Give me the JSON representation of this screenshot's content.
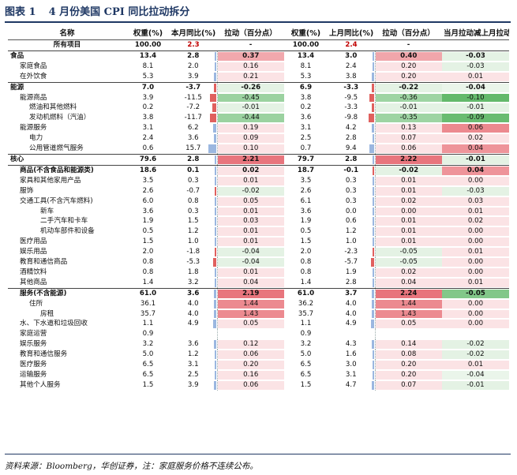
{
  "title": {
    "label": "图表 1",
    "text": "4 月份美国 CPI 同比拉动拆分"
  },
  "headers": {
    "name": "名称",
    "w_cur": "权重(%)",
    "yoy_cur": "本月同比(%)",
    "pull_cur": "拉动（百分点）",
    "w_prev": "权重(%)",
    "yoy_prev": "上月同比(%)",
    "pull_prev": "拉动（百分点）",
    "diff": "当月拉动减上月拉动"
  },
  "total": {
    "name": "所有项目",
    "w_cur": "100.00",
    "yoy_cur": "2.3",
    "pull_cur": "-",
    "w_prev": "100.00",
    "yoy_prev": "2.4",
    "pull_prev": "-",
    "diff": ""
  },
  "rows": [
    {
      "name": "食品",
      "level": 0,
      "bold": true,
      "top": true,
      "w1": "13.4",
      "y1": "2.8",
      "y1n": 2.8,
      "p1": "0.37",
      "p1n": 0.37,
      "w2": "13.4",
      "y2": "3.0",
      "y2n": 3.0,
      "p2": "0.40",
      "p2n": 0.4,
      "d": "-0.03",
      "dn": -0.03
    },
    {
      "name": "家庭食品",
      "level": 1,
      "w1": "8.1",
      "y1": "2.0",
      "y1n": 2.0,
      "p1": "0.16",
      "p1n": 0.16,
      "w2": "8.1",
      "y2": "2.4",
      "y2n": 2.4,
      "p2": "0.20",
      "p2n": 0.2,
      "d": "-0.03",
      "dn": -0.03
    },
    {
      "name": "在外饮食",
      "level": 1,
      "w1": "5.3",
      "y1": "3.9",
      "y1n": 3.9,
      "p1": "0.21",
      "p1n": 0.21,
      "w2": "5.3",
      "y2": "3.8",
      "y2n": 3.8,
      "p2": "0.20",
      "p2n": 0.2,
      "d": "0.01",
      "dn": 0.01
    },
    {
      "name": "能源",
      "level": 0,
      "bold": true,
      "top": true,
      "w1": "7.0",
      "y1": "-3.7",
      "y1n": -3.7,
      "p1": "-0.26",
      "p1n": -0.26,
      "w2": "6.9",
      "y2": "-3.3",
      "y2n": -3.3,
      "p2": "-0.22",
      "p2n": -0.22,
      "d": "-0.04",
      "dn": -0.04
    },
    {
      "name": "能源商品",
      "level": 1,
      "w1": "3.9",
      "y1": "-11.5",
      "y1n": -11.5,
      "p1": "-0.45",
      "p1n": -0.45,
      "w2": "3.8",
      "y2": "-9.5",
      "y2n": -9.5,
      "p2": "-0.36",
      "p2n": -0.36,
      "d": "-0.10",
      "dn": -0.1
    },
    {
      "name": "燃油和其他燃料",
      "level": 2,
      "w1": "0.2",
      "y1": "-7.2",
      "y1n": -7.2,
      "p1": "-0.01",
      "p1n": -0.01,
      "w2": "0.2",
      "y2": "-3.3",
      "y2n": -3.3,
      "p2": "-0.01",
      "p2n": -0.01,
      "d": "-0.01",
      "dn": -0.01
    },
    {
      "name": "发动机燃料（汽油）",
      "level": 2,
      "w1": "3.8",
      "y1": "-11.7",
      "y1n": -11.7,
      "p1": "-0.44",
      "p1n": -0.44,
      "w2": "3.6",
      "y2": "-9.8",
      "y2n": -9.8,
      "p2": "-0.35",
      "p2n": -0.35,
      "d": "-0.09",
      "dn": -0.09
    },
    {
      "name": "能源服务",
      "level": 1,
      "w1": "3.1",
      "y1": "6.2",
      "y1n": 6.2,
      "p1": "0.19",
      "p1n": 0.19,
      "w2": "3.1",
      "y2": "4.2",
      "y2n": 4.2,
      "p2": "0.13",
      "p2n": 0.13,
      "d": "0.06",
      "dn": 0.06
    },
    {
      "name": "电力",
      "level": 2,
      "w1": "2.4",
      "y1": "3.6",
      "y1n": 3.6,
      "p1": "0.09",
      "p1n": 0.09,
      "w2": "2.5",
      "y2": "2.8",
      "y2n": 2.8,
      "p2": "0.07",
      "p2n": 0.07,
      "d": "0.02",
      "dn": 0.02
    },
    {
      "name": "公用管道燃气服务",
      "level": 2,
      "w1": "0.6",
      "y1": "15.7",
      "y1n": 15.7,
      "p1": "0.10",
      "p1n": 0.1,
      "w2": "0.7",
      "y2": "9.4",
      "y2n": 9.4,
      "p2": "0.06",
      "p2n": 0.06,
      "d": "0.04",
      "dn": 0.04
    },
    {
      "name": "核心",
      "level": 0,
      "bold": true,
      "top": true,
      "w1": "79.6",
      "y1": "2.8",
      "y1n": 2.8,
      "p1": "2.21",
      "p1n": 2.21,
      "w2": "79.7",
      "y2": "2.8",
      "y2n": 2.8,
      "p2": "2.22",
      "p2n": 2.22,
      "d": "-0.01",
      "dn": -0.01
    },
    {
      "name": "商品(不含食品和能源类)",
      "level": 1,
      "bold": true,
      "top": true,
      "w1": "18.6",
      "y1": "0.1",
      "y1n": 0.1,
      "p1": "0.02",
      "p1n": 0.02,
      "w2": "18.7",
      "y2": "-0.1",
      "y2n": -0.1,
      "p2": "-0.02",
      "p2n": -0.02,
      "d": "0.04",
      "dn": 0.04
    },
    {
      "name": "家具和其他家用产品",
      "level": 1,
      "w1": "3.5",
      "y1": "0.3",
      "y1n": 0.3,
      "p1": "0.01",
      "p1n": 0.01,
      "w2": "3.5",
      "y2": "0.3",
      "y2n": 0.3,
      "p2": "0.01",
      "p2n": 0.01,
      "d": "0.00",
      "dn": 0.0
    },
    {
      "name": "服饰",
      "level": 1,
      "w1": "2.6",
      "y1": "-0.7",
      "y1n": -0.7,
      "p1": "-0.02",
      "p1n": -0.02,
      "w2": "2.6",
      "y2": "0.3",
      "y2n": 0.3,
      "p2": "0.01",
      "p2n": 0.01,
      "d": "-0.03",
      "dn": -0.03
    },
    {
      "name": "交通工具(不含汽车燃料)",
      "level": 1,
      "w1": "6.0",
      "y1": "0.8",
      "y1n": 0.8,
      "p1": "0.05",
      "p1n": 0.05,
      "w2": "6.1",
      "y2": "0.3",
      "y2n": 0.3,
      "p2": "0.02",
      "p2n": 0.02,
      "d": "0.03",
      "dn": 0.03
    },
    {
      "name": "新车",
      "level": 3,
      "w1": "3.6",
      "y1": "0.3",
      "y1n": 0.3,
      "p1": "0.01",
      "p1n": 0.01,
      "w2": "3.6",
      "y2": "0.0",
      "y2n": 0.0,
      "p2": "0.00",
      "p2n": 0.0,
      "d": "0.01",
      "dn": 0.01
    },
    {
      "name": "二手汽车和卡车",
      "level": 3,
      "w1": "1.9",
      "y1": "1.5",
      "y1n": 1.5,
      "p1": "0.03",
      "p1n": 0.03,
      "w2": "1.9",
      "y2": "0.6",
      "y2n": 0.6,
      "p2": "0.01",
      "p2n": 0.01,
      "d": "0.02",
      "dn": 0.02
    },
    {
      "name": "机动车部件和设备",
      "level": 3,
      "w1": "0.5",
      "y1": "1.2",
      "y1n": 1.2,
      "p1": "0.01",
      "p1n": 0.01,
      "w2": "0.5",
      "y2": "1.2",
      "y2n": 1.2,
      "p2": "0.01",
      "p2n": 0.01,
      "d": "0.00",
      "dn": 0.0
    },
    {
      "name": "医疗用品",
      "level": 1,
      "w1": "1.5",
      "y1": "1.0",
      "y1n": 1.0,
      "p1": "0.01",
      "p1n": 0.01,
      "w2": "1.5",
      "y2": "1.0",
      "y2n": 1.0,
      "p2": "0.01",
      "p2n": 0.01,
      "d": "0.00",
      "dn": 0.0
    },
    {
      "name": "娱乐用品",
      "level": 1,
      "w1": "2.0",
      "y1": "-1.8",
      "y1n": -1.8,
      "p1": "-0.04",
      "p1n": -0.04,
      "w2": "2.0",
      "y2": "-2.3",
      "y2n": -2.3,
      "p2": "-0.05",
      "p2n": -0.05,
      "d": "0.01",
      "dn": 0.01
    },
    {
      "name": "教育和通信商品",
      "level": 1,
      "w1": "0.8",
      "y1": "-5.3",
      "y1n": -5.3,
      "p1": "-0.04",
      "p1n": -0.04,
      "w2": "0.8",
      "y2": "-5.7",
      "y2n": -5.7,
      "p2": "-0.05",
      "p2n": -0.05,
      "d": "0.00",
      "dn": 0.0
    },
    {
      "name": "酒精饮料",
      "level": 1,
      "w1": "0.8",
      "y1": "1.8",
      "y1n": 1.8,
      "p1": "0.01",
      "p1n": 0.01,
      "w2": "0.8",
      "y2": "1.9",
      "y2n": 1.9,
      "p2": "0.02",
      "p2n": 0.02,
      "d": "0.00",
      "dn": 0.0
    },
    {
      "name": "其他商品",
      "level": 1,
      "w1": "1.4",
      "y1": "3.2",
      "y1n": 3.2,
      "p1": "0.04",
      "p1n": 0.04,
      "w2": "1.4",
      "y2": "2.8",
      "y2n": 2.8,
      "p2": "0.04",
      "p2n": 0.04,
      "d": "0.01",
      "dn": 0.01
    },
    {
      "name": "服务(不含能源)",
      "level": 1,
      "bold": true,
      "top": true,
      "w1": "61.0",
      "y1": "3.6",
      "y1n": 3.6,
      "p1": "2.19",
      "p1n": 2.19,
      "w2": "61.0",
      "y2": "3.7",
      "y2n": 3.7,
      "p2": "2.24",
      "p2n": 2.24,
      "d": "-0.05",
      "dn": -0.05
    },
    {
      "name": "住所",
      "level": 2,
      "w1": "36.1",
      "y1": "4.0",
      "y1n": 4.0,
      "p1": "1.44",
      "p1n": 1.44,
      "w2": "36.2",
      "y2": "4.0",
      "y2n": 4.0,
      "p2": "1.44",
      "p2n": 1.44,
      "d": "0.00",
      "dn": 0.0
    },
    {
      "name": "房租",
      "level": 3,
      "w1": "35.7",
      "y1": "4.0",
      "y1n": 4.0,
      "p1": "1.43",
      "p1n": 1.43,
      "w2": "35.7",
      "y2": "4.0",
      "y2n": 4.0,
      "p2": "1.43",
      "p2n": 1.43,
      "d": "0.00",
      "dn": 0.0
    },
    {
      "name": "水、下水道和垃圾回收",
      "level": 1,
      "w1": "1.1",
      "y1": "4.9",
      "y1n": 4.9,
      "p1": "0.05",
      "p1n": 0.05,
      "w2": "1.1",
      "y2": "4.9",
      "y2n": 4.9,
      "p2": "0.05",
      "p2n": 0.05,
      "d": "0.00",
      "dn": 0.0
    },
    {
      "name": "家庭运营",
      "level": 1,
      "w1": "0.9",
      "y1": "",
      "y1n": null,
      "p1": "",
      "p1n": null,
      "w2": "0.9",
      "y2": "",
      "y2n": null,
      "p2": "",
      "p2n": null,
      "d": "",
      "dn": null
    },
    {
      "name": "娱乐服务",
      "level": 1,
      "w1": "3.2",
      "y1": "3.6",
      "y1n": 3.6,
      "p1": "0.12",
      "p1n": 0.12,
      "w2": "3.2",
      "y2": "4.3",
      "y2n": 4.3,
      "p2": "0.14",
      "p2n": 0.14,
      "d": "-0.02",
      "dn": -0.02
    },
    {
      "name": "教育和通信服务",
      "level": 1,
      "w1": "5.0",
      "y1": "1.2",
      "y1n": 1.2,
      "p1": "0.06",
      "p1n": 0.06,
      "w2": "5.0",
      "y2": "1.6",
      "y2n": 1.6,
      "p2": "0.08",
      "p2n": 0.08,
      "d": "-0.02",
      "dn": -0.02
    },
    {
      "name": "医疗服务",
      "level": 1,
      "w1": "6.5",
      "y1": "3.1",
      "y1n": 3.1,
      "p1": "0.20",
      "p1n": 0.2,
      "w2": "6.5",
      "y2": "3.0",
      "y2n": 3.0,
      "p2": "0.20",
      "p2n": 0.2,
      "d": "0.01",
      "dn": 0.01
    },
    {
      "name": "运输服务",
      "level": 1,
      "w1": "6.5",
      "y1": "2.5",
      "y1n": 2.5,
      "p1": "0.16",
      "p1n": 0.16,
      "w2": "6.5",
      "y2": "3.1",
      "y2n": 3.1,
      "p2": "0.20",
      "p2n": 0.2,
      "d": "-0.04",
      "dn": -0.04
    },
    {
      "name": "其他个人服务",
      "level": 1,
      "w1": "1.5",
      "y1": "3.9",
      "y1n": 3.9,
      "p1": "0.06",
      "p1n": 0.06,
      "w2": "1.5",
      "y2": "4.7",
      "y2n": 4.7,
      "p2": "0.07",
      "p2n": 0.07,
      "d": "-0.01",
      "dn": -0.01
    }
  ],
  "source": "资料来源：Bloomberg，华创证券，注：家庭服务价格不连续公布。",
  "colors": {
    "title": "#1f3864",
    "red": "#c00000",
    "pos_bar": "#e8727a",
    "neg_bar": "#63b96b",
    "pos_light": "#fbe3e5",
    "neg_light": "#e4f2e4",
    "yoy_pos": "#9bb7e0",
    "yoy_neg": "#e0605e"
  }
}
